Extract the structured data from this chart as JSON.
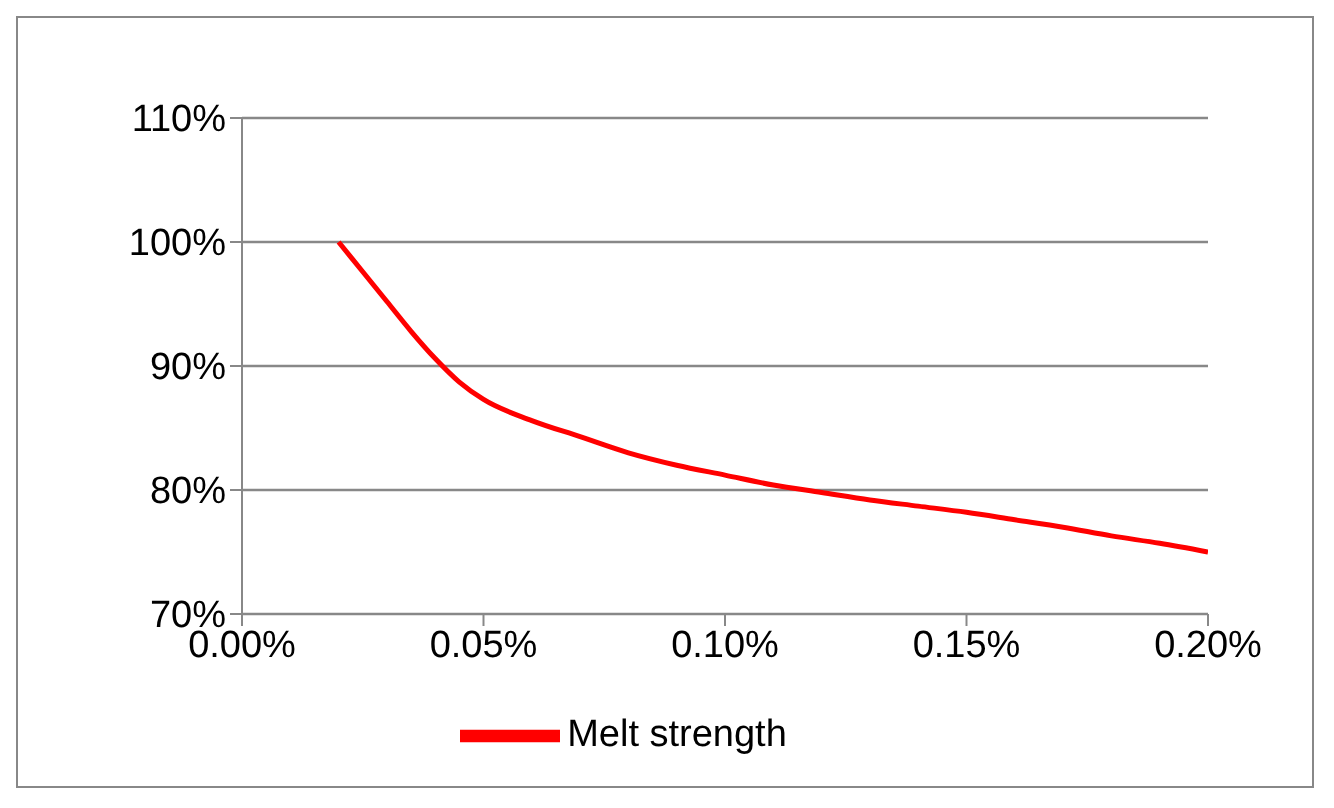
{
  "chart_data": {
    "type": "line",
    "x": [
      0.02,
      0.025,
      0.03,
      0.035,
      0.04,
      0.045,
      0.05,
      0.06,
      0.07,
      0.08,
      0.09,
      0.1,
      0.11,
      0.12,
      0.13,
      0.14,
      0.15,
      0.16,
      0.17,
      0.18,
      0.19,
      0.2
    ],
    "series": [
      {
        "name": "Melt strength",
        "color": "#ff0000",
        "values": [
          100,
          97.6,
          95.2,
          92.8,
          90.6,
          88.7,
          87.3,
          85.6,
          84.3,
          83.0,
          82.0,
          81.2,
          80.4,
          79.8,
          79.2,
          78.7,
          78.2,
          77.6,
          77.0,
          76.3,
          75.7,
          75.0
        ]
      }
    ],
    "xlim": [
      0,
      0.2
    ],
    "xticks": [
      {
        "value": 0,
        "label": "0.00%"
      },
      {
        "value": 0.05,
        "label": "0.05%"
      },
      {
        "value": 0.1,
        "label": "0.10%"
      },
      {
        "value": 0.15,
        "label": "0.15%"
      },
      {
        "value": 0.2,
        "label": "0.20%"
      }
    ],
    "ylim": [
      70,
      110
    ],
    "yticks": [
      {
        "value": 70,
        "label": "70%"
      },
      {
        "value": 80,
        "label": "80%"
      },
      {
        "value": 90,
        "label": "90%"
      },
      {
        "value": 100,
        "label": "100%"
      },
      {
        "value": 110,
        "label": "110%"
      }
    ],
    "grid": "y",
    "legend": "bottom",
    "marker": "none",
    "line_style": "solid"
  }
}
